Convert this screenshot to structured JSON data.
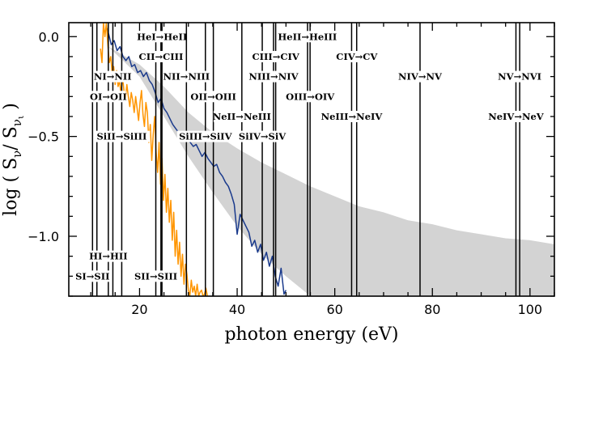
{
  "chart_data": {
    "type": "line",
    "xlabel": "photon energy (eV)",
    "ylabel_parts": {
      "prefix": "log ( S",
      "sub1": "ν",
      "mid": "/ S",
      "sub2": "ν",
      "subsub": "ι",
      "suffix": " )"
    },
    "xlim": [
      5.5,
      105
    ],
    "ylim": [
      -1.3,
      0.07
    ],
    "x_ticks": [
      20,
      40,
      60,
      80,
      100
    ],
    "x_minor_step": 5,
    "y_ticks": [
      0.0,
      -0.5,
      -1.0
    ],
    "y_tick_labels": [
      "0.0",
      "−0.5",
      "−1.0"
    ],
    "y_minor_step": 0.1,
    "grid": false,
    "band": {
      "color": "#d3d3d3",
      "x": [
        13.6,
        20,
        25,
        30,
        35,
        40,
        45,
        50,
        55,
        60,
        65,
        70,
        75,
        80,
        85,
        90,
        95,
        100,
        105
      ],
      "upper": [
        -0.05,
        -0.14,
        -0.25,
        -0.38,
        -0.48,
        -0.56,
        -0.63,
        -0.69,
        -0.75,
        -0.8,
        -0.85,
        -0.88,
        -0.92,
        -0.94,
        -0.97,
        -0.99,
        -1.01,
        -1.02,
        -1.04
      ],
      "lower": [
        -0.05,
        -0.2,
        -0.4,
        -0.6,
        -0.78,
        -0.95,
        -1.09,
        -1.2,
        -1.3,
        -1.3,
        -1.3,
        -1.3,
        -1.3,
        -1.3,
        -1.3,
        -1.3,
        -1.3,
        -1.3,
        -1.3
      ]
    },
    "series": [
      {
        "color": "#1a3a8c",
        "x": [
          13.2,
          13.7,
          14.2,
          14.8,
          15.4,
          16.0,
          16.6,
          17.2,
          17.8,
          18.4,
          19.0,
          19.6,
          20.2,
          20.8,
          21.4,
          22.0,
          22.6,
          23.2,
          23.8,
          24.4,
          25.0,
          25.6,
          26.2,
          26.8,
          27.4,
          28.0,
          28.6,
          29.2,
          29.8,
          30.4,
          31.0,
          31.6,
          32.2,
          32.8,
          33.4,
          34.0,
          34.6,
          35.2,
          35.8,
          36.4,
          37.0,
          37.6,
          38.2,
          38.8,
          39.4,
          40.0,
          40.6,
          41.2,
          41.8,
          42.4,
          43.0,
          43.6,
          44.2,
          44.8,
          45.4,
          46.0,
          46.6,
          47.2,
          47.8,
          48.4,
          49.0,
          49.6,
          50.0
        ],
        "y": [
          0.05,
          0.01,
          -0.04,
          -0.02,
          -0.07,
          -0.05,
          -0.1,
          -0.12,
          -0.1,
          -0.15,
          -0.14,
          -0.18,
          -0.17,
          -0.2,
          -0.18,
          -0.22,
          -0.24,
          -0.28,
          -0.33,
          -0.31,
          -0.36,
          -0.38,
          -0.41,
          -0.44,
          -0.46,
          -0.48,
          -0.5,
          -0.51,
          -0.5,
          -0.53,
          -0.55,
          -0.54,
          -0.57,
          -0.6,
          -0.58,
          -0.61,
          -0.63,
          -0.65,
          -0.64,
          -0.68,
          -0.7,
          -0.73,
          -0.75,
          -0.79,
          -0.84,
          -0.99,
          -0.89,
          -0.92,
          -0.95,
          -0.98,
          -1.05,
          -1.02,
          -1.08,
          -1.04,
          -1.12,
          -1.08,
          -1.15,
          -1.1,
          -1.2,
          -1.25,
          -1.16,
          -1.29,
          -1.27
        ]
      },
      {
        "color": "#ff9500",
        "x": [
          12.0,
          12.3,
          12.6,
          12.9,
          13.2,
          13.5,
          13.8,
          14.1,
          14.4,
          14.7,
          15.0,
          15.3,
          15.6,
          15.9,
          16.2,
          16.5,
          16.8,
          17.1,
          17.4,
          17.7,
          18.0,
          18.3,
          18.6,
          18.9,
          19.2,
          19.5,
          19.8,
          20.1,
          20.4,
          20.7,
          21.0,
          21.3,
          21.6,
          21.9,
          22.2,
          22.5,
          22.8,
          23.1,
          23.4,
          23.7,
          24.0,
          24.3,
          24.6,
          24.9,
          25.2,
          25.5,
          25.8,
          26.1,
          26.4,
          26.7,
          27.0,
          27.3,
          27.6,
          27.9,
          28.2,
          28.5,
          28.8,
          29.1,
          29.4,
          29.7,
          30.0,
          30.3,
          30.6,
          30.9,
          31.2,
          31.5,
          31.8,
          32.1,
          32.4,
          32.7,
          33.0,
          33.3,
          33.6,
          33.9
        ],
        "y": [
          -0.06,
          -0.13,
          0.07,
          0.0,
          0.07,
          -0.04,
          -0.13,
          -0.1,
          -0.19,
          -0.15,
          -0.24,
          -0.17,
          -0.25,
          -0.22,
          -0.29,
          -0.2,
          -0.27,
          -0.31,
          -0.24,
          -0.3,
          -0.35,
          -0.28,
          -0.32,
          -0.38,
          -0.3,
          -0.36,
          -0.42,
          -0.33,
          -0.27,
          -0.39,
          -0.45,
          -0.33,
          -0.38,
          -0.53,
          -0.44,
          -0.62,
          -0.49,
          -0.4,
          -0.58,
          -0.68,
          -0.53,
          -0.74,
          -0.61,
          -0.82,
          -0.69,
          -0.88,
          -0.76,
          -0.93,
          -0.82,
          -1.02,
          -0.88,
          -1.1,
          -0.97,
          -1.14,
          -1.03,
          -1.2,
          -1.09,
          -1.24,
          -1.14,
          -1.19,
          -1.27,
          -1.3,
          -1.22,
          -1.28,
          -1.25,
          -1.3,
          -1.24,
          -1.3,
          -1.28,
          -1.27,
          -1.3,
          -1.29,
          -1.26,
          -1.3
        ]
      }
    ],
    "vertical_lines": [
      10.36,
      11.26,
      13.6,
      14.53,
      16.35,
      23.33,
      24.59,
      24.38,
      29.6,
      33.49,
      35.12,
      40.96,
      45.14,
      47.45,
      47.89,
      54.42,
      54.94,
      63.45,
      64.49,
      77.47,
      97.12,
      97.89
    ],
    "annotations": [
      {
        "text": "HeI→HeII",
        "x": 24.6,
        "y": 0.0
      },
      {
        "text": "HeII→HeIII",
        "x": 54.4,
        "y": 0.0
      },
      {
        "text": "CII→CIII",
        "x": 24.4,
        "y": -0.1
      },
      {
        "text": "CIII→CIV",
        "x": 47.9,
        "y": -0.1
      },
      {
        "text": "CIV→CV",
        "x": 64.5,
        "y": -0.1
      },
      {
        "text": "NI→NII",
        "x": 14.5,
        "y": -0.2
      },
      {
        "text": "NII→NIII",
        "x": 29.6,
        "y": -0.2
      },
      {
        "text": "NIII→NIV",
        "x": 47.45,
        "y": -0.2
      },
      {
        "text": "NIV→NV",
        "x": 77.47,
        "y": -0.2
      },
      {
        "text": "NV→NVI",
        "x": 97.89,
        "y": -0.2
      },
      {
        "text": "OI→OII",
        "x": 13.6,
        "y": -0.3
      },
      {
        "text": "OII→OIII",
        "x": 35.12,
        "y": -0.3
      },
      {
        "text": "OIII→OIV",
        "x": 54.94,
        "y": -0.3
      },
      {
        "text": "NeII→NeIII",
        "x": 40.96,
        "y": -0.4
      },
      {
        "text": "NeIII→NeIV",
        "x": 63.45,
        "y": -0.4
      },
      {
        "text": "NeIV→NeV",
        "x": 97.12,
        "y": -0.4
      },
      {
        "text": "SiII→SiIII",
        "x": 16.35,
        "y": -0.5
      },
      {
        "text": "SiIII→SiIV",
        "x": 33.49,
        "y": -0.5
      },
      {
        "text": "SiIV→SiV",
        "x": 45.14,
        "y": -0.5
      },
      {
        "text": "HI→HII",
        "x": 13.6,
        "y": -1.1
      },
      {
        "text": "SI→SII",
        "x": 10.36,
        "y": -1.2
      },
      {
        "text": "SII→SIII",
        "x": 23.33,
        "y": -1.2
      }
    ]
  }
}
